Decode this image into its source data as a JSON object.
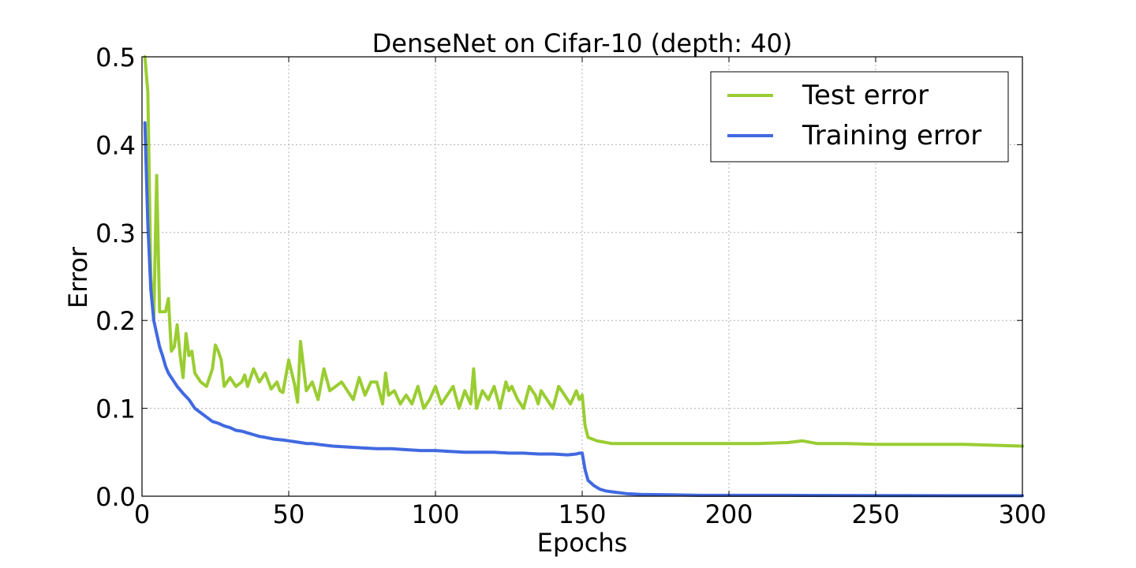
{
  "chart_data": {
    "type": "line",
    "title": "DenseNet on Cifar-10 (depth: 40)",
    "xlabel": "Epochs",
    "ylabel": "Error",
    "xlim": [
      0,
      300
    ],
    "ylim": [
      0,
      0.5
    ],
    "xticks": [
      0,
      50,
      100,
      150,
      200,
      250,
      300
    ],
    "xtick_labels": [
      "0",
      "50",
      "100",
      "150",
      "200",
      "250",
      "300"
    ],
    "yticks": [
      0,
      0.1,
      0.2,
      0.3,
      0.4,
      0.5
    ],
    "ytick_labels": [
      "0.0",
      "0.1",
      "0.2",
      "0.3",
      "0.4",
      "0.5"
    ],
    "grid": true,
    "legend_position": "top-right",
    "series": [
      {
        "name": "Test error",
        "color": "#9acd32",
        "x": [
          1,
          2,
          3,
          4,
          5,
          6,
          7,
          8,
          9,
          10,
          11,
          12,
          13,
          14,
          15,
          16,
          17,
          18,
          20,
          22,
          24,
          25,
          26,
          27,
          28,
          30,
          32,
          34,
          35,
          36,
          38,
          40,
          42,
          44,
          46,
          47,
          48,
          50,
          52,
          53,
          54,
          56,
          58,
          60,
          62,
          64,
          66,
          68,
          70,
          72,
          74,
          75,
          76,
          78,
          80,
          82,
          83,
          84,
          86,
          88,
          90,
          92,
          94,
          96,
          98,
          100,
          102,
          104,
          106,
          108,
          110,
          112,
          113,
          114,
          116,
          118,
          120,
          122,
          124,
          125,
          126,
          128,
          130,
          132,
          134,
          135,
          136,
          138,
          140,
          142,
          144,
          146,
          148,
          149,
          150,
          151,
          152,
          155,
          160,
          170,
          180,
          190,
          200,
          210,
          220,
          225,
          230,
          240,
          250,
          260,
          270,
          280,
          290,
          300
        ],
        "values": [
          0.5,
          0.46,
          0.25,
          0.2,
          0.365,
          0.21,
          0.21,
          0.21,
          0.225,
          0.165,
          0.17,
          0.195,
          0.16,
          0.135,
          0.185,
          0.16,
          0.165,
          0.14,
          0.13,
          0.125,
          0.145,
          0.172,
          0.165,
          0.155,
          0.125,
          0.135,
          0.125,
          0.13,
          0.138,
          0.125,
          0.145,
          0.13,
          0.14,
          0.122,
          0.13,
          0.12,
          0.118,
          0.155,
          0.127,
          0.107,
          0.176,
          0.12,
          0.13,
          0.11,
          0.145,
          0.12,
          0.125,
          0.13,
          0.12,
          0.11,
          0.135,
          0.125,
          0.115,
          0.13,
          0.13,
          0.105,
          0.14,
          0.115,
          0.12,
          0.105,
          0.115,
          0.105,
          0.125,
          0.1,
          0.11,
          0.125,
          0.105,
          0.115,
          0.125,
          0.1,
          0.12,
          0.105,
          0.145,
          0.1,
          0.12,
          0.11,
          0.125,
          0.1,
          0.13,
          0.12,
          0.125,
          0.11,
          0.1,
          0.125,
          0.115,
          0.105,
          0.12,
          0.11,
          0.1,
          0.125,
          0.115,
          0.105,
          0.12,
          0.11,
          0.115,
          0.08,
          0.067,
          0.063,
          0.06,
          0.06,
          0.06,
          0.06,
          0.06,
          0.06,
          0.061,
          0.063,
          0.06,
          0.06,
          0.059,
          0.059,
          0.059,
          0.059,
          0.058,
          0.057
        ]
      },
      {
        "name": "Training error",
        "color": "#4169e1",
        "x": [
          1,
          2,
          3,
          4,
          5,
          6,
          7,
          8,
          9,
          10,
          12,
          14,
          16,
          18,
          20,
          22,
          24,
          26,
          28,
          30,
          32,
          34,
          36,
          38,
          40,
          42,
          45,
          48,
          50,
          52,
          54,
          56,
          58,
          60,
          65,
          70,
          75,
          80,
          85,
          90,
          95,
          100,
          105,
          110,
          115,
          120,
          125,
          130,
          135,
          140,
          145,
          148,
          149,
          150,
          151,
          152,
          154,
          156,
          158,
          160,
          165,
          170,
          180,
          190,
          200,
          220,
          240,
          260,
          280,
          300
        ],
        "values": [
          0.425,
          0.31,
          0.235,
          0.2,
          0.185,
          0.17,
          0.16,
          0.148,
          0.14,
          0.135,
          0.125,
          0.117,
          0.11,
          0.1,
          0.095,
          0.09,
          0.085,
          0.083,
          0.08,
          0.078,
          0.075,
          0.074,
          0.072,
          0.07,
          0.068,
          0.067,
          0.065,
          0.064,
          0.063,
          0.062,
          0.061,
          0.06,
          0.06,
          0.059,
          0.057,
          0.056,
          0.055,
          0.054,
          0.054,
          0.053,
          0.052,
          0.052,
          0.051,
          0.05,
          0.05,
          0.05,
          0.049,
          0.049,
          0.048,
          0.048,
          0.047,
          0.048,
          0.049,
          0.049,
          0.03,
          0.018,
          0.012,
          0.008,
          0.006,
          0.005,
          0.003,
          0.002,
          0.0015,
          0.001,
          0.001,
          0.001,
          0.0008,
          0.0006,
          0.0005,
          0.0005
        ]
      }
    ]
  }
}
